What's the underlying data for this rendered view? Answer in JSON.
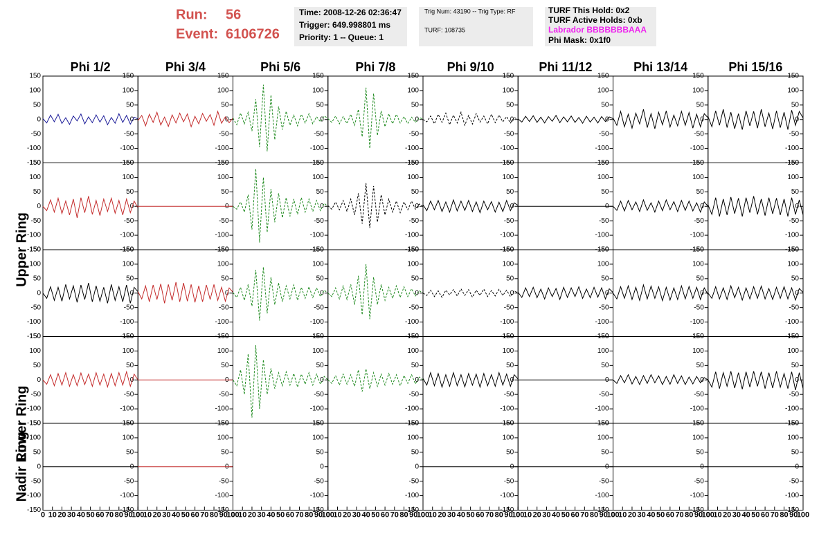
{
  "header": {
    "run_label": "Run:",
    "run": "56",
    "event_label": "Event:",
    "event": "6106726",
    "info_box_1": [
      "Time: 2008-12-26 02:36:47",
      "Trigger: 649.998801 ms",
      "Priority: 1 -- Queue: 1"
    ],
    "info_box_2": [
      "Trig Num: 43190 -- Trig Type: RF",
      "TURF: 108735"
    ],
    "info_box_3": [
      "TURF This Hold: 0x2",
      "TURF Active Holds: 0xb",
      "Labrador BBBBBBBAAA",
      "Phi Mask: 0x1f0"
    ]
  },
  "chart_data": {
    "type": "line",
    "columns": [
      "Phi 1/2",
      "Phi 3/4",
      "Phi 5/6",
      "Phi 7/8",
      "Phi 9/10",
      "Phi 11/12",
      "Phi 13/14",
      "Phi 15/16"
    ],
    "row_labels": [
      "Upper Ring",
      "Lower Ring",
      "Nadir Ring"
    ],
    "xlim": [
      0,
      100
    ],
    "xticks": [
      0,
      10,
      20,
      30,
      40,
      50,
      60,
      70,
      80,
      90,
      100
    ],
    "ylim": [
      -150,
      150
    ],
    "yticks": [
      -150,
      -100,
      -50,
      0,
      50,
      100,
      150
    ],
    "x": [
      0,
      4,
      8,
      12,
      16,
      20,
      24,
      28,
      32,
      36,
      40,
      44,
      48,
      52,
      56,
      60,
      64,
      68,
      72,
      76,
      80,
      84,
      88,
      92,
      96,
      100
    ],
    "panels": [
      {
        "color": "#1c1c99",
        "dashed": false,
        "values": [
          3,
          -12,
          15,
          -8,
          18,
          -14,
          6,
          -17,
          12,
          -5,
          19,
          -15,
          9,
          -11,
          16,
          -9,
          13,
          -18,
          7,
          -13,
          20,
          -10,
          14,
          -16,
          8,
          2
        ]
      },
      {
        "color": "#c42b2b",
        "dashed": false,
        "values": [
          -4,
          14,
          -22,
          18,
          -10,
          25,
          -19,
          8,
          -24,
          16,
          -12,
          22,
          -8,
          19,
          -25,
          11,
          -15,
          21,
          -6,
          17,
          -20,
          28,
          -13,
          9,
          -11,
          5
        ]
      },
      {
        "color": "#1f8a1f",
        "dashed": true,
        "values": [
          5,
          -18,
          22,
          -15,
          25,
          -40,
          70,
          -95,
          120,
          -110,
          85,
          -70,
          45,
          -35,
          28,
          -20,
          15,
          -22,
          18,
          -12,
          20,
          -15,
          10,
          -8,
          12,
          4
        ]
      },
      {
        "color": "#1f8a1f",
        "dashed": true,
        "values": [
          3,
          -10,
          12,
          -15,
          10,
          -14,
          18,
          -20,
          35,
          -60,
          110,
          -100,
          90,
          -55,
          30,
          -25,
          20,
          -15,
          18,
          -12,
          10,
          -14,
          8,
          -10,
          6,
          2
        ]
      },
      {
        "color": "#000000",
        "dashed": true,
        "values": [
          0,
          -8,
          12,
          -15,
          18,
          -10,
          22,
          -18,
          15,
          -12,
          25,
          -20,
          14,
          -16,
          20,
          -9,
          12,
          -15,
          18,
          -11,
          15,
          -8,
          10,
          -12,
          7,
          0
        ]
      },
      {
        "color": "#000000",
        "dashed": false,
        "values": [
          2,
          -9,
          11,
          -7,
          13,
          -10,
          8,
          -12,
          10,
          -6,
          14,
          -11,
          9,
          -8,
          12,
          -10,
          7,
          -13,
          11,
          -9,
          8,
          -12,
          10,
          -7,
          9,
          3
        ]
      },
      {
        "color": "#000000",
        "dashed": false,
        "values": [
          5,
          -20,
          28,
          -25,
          18,
          -30,
          22,
          -15,
          35,
          -28,
          20,
          -32,
          25,
          -18,
          30,
          -26,
          15,
          -22,
          28,
          -20,
          24,
          -30,
          18,
          -25,
          20,
          6
        ]
      },
      {
        "color": "#000000",
        "dashed": false,
        "values": [
          10,
          -25,
          30,
          -20,
          35,
          -28,
          25,
          -32,
          20,
          -35,
          30,
          -22,
          28,
          -30,
          35,
          -25,
          22,
          -33,
          30,
          -28,
          25,
          -35,
          32,
          -20,
          28,
          5
        ]
      },
      {
        "color": "#c42b2b",
        "dashed": false,
        "values": [
          0,
          -15,
          22,
          -20,
          28,
          -25,
          18,
          -30,
          25,
          -40,
          30,
          -22,
          35,
          -28,
          20,
          -32,
          25,
          -18,
          28,
          -24,
          20,
          -30,
          25,
          -22,
          18,
          -5
        ]
      },
      {
        "color": "#c42b2b",
        "dashed": false,
        "values": [
          0,
          0,
          0,
          0,
          0,
          0,
          0,
          0,
          0,
          0,
          0,
          0,
          0,
          0,
          0,
          0,
          0,
          0,
          0,
          0,
          0,
          0,
          0,
          0,
          0,
          0
        ]
      },
      {
        "color": "#1f8a1f",
        "dashed": true,
        "values": [
          0,
          -10,
          15,
          -20,
          40,
          -80,
          130,
          -125,
          100,
          -90,
          60,
          -55,
          45,
          -40,
          30,
          -35,
          25,
          -28,
          30,
          -20,
          25,
          -18,
          20,
          -15,
          10,
          0
        ]
      },
      {
        "color": "#000000",
        "dashed": true,
        "values": [
          2,
          -10,
          15,
          -12,
          20,
          -18,
          25,
          -30,
          45,
          -60,
          80,
          -75,
          70,
          -55,
          40,
          -30,
          25,
          -20,
          18,
          -22,
          15,
          -12,
          18,
          -10,
          8,
          0
        ]
      },
      {
        "color": "#000000",
        "dashed": false,
        "values": [
          5,
          -15,
          18,
          -12,
          20,
          -18,
          15,
          -20,
          22,
          -16,
          18,
          -14,
          20,
          -18,
          15,
          -22,
          18,
          -12,
          16,
          -20,
          14,
          -18,
          20,
          -15,
          12,
          3
        ]
      },
      {
        "color": "#000000",
        "dashed": false,
        "values": [
          0,
          0,
          0,
          0,
          0,
          0,
          0,
          0,
          0,
          0,
          0,
          0,
          0,
          0,
          0,
          0,
          0,
          0,
          0,
          0,
          0,
          0,
          0,
          0,
          0,
          0
        ]
      },
      {
        "color": "#000000",
        "dashed": false,
        "values": [
          0,
          -14,
          18,
          -16,
          20,
          -12,
          15,
          -18,
          22,
          -14,
          12,
          -20,
          18,
          -15,
          22,
          -12,
          16,
          -18,
          20,
          -14,
          18,
          -16,
          12,
          -20,
          15,
          0
        ]
      },
      {
        "color": "#000000",
        "dashed": false,
        "values": [
          5,
          -28,
          30,
          -35,
          25,
          -30,
          32,
          -25,
          28,
          -35,
          30,
          -22,
          35,
          -28,
          25,
          -32,
          30,
          -26,
          28,
          -30,
          25,
          -35,
          30,
          -28,
          22,
          -30
        ]
      },
      {
        "color": "#000000",
        "dashed": false,
        "values": [
          0,
          -18,
          22,
          -25,
          20,
          -28,
          30,
          -20,
          25,
          -32,
          28,
          -22,
          35,
          -30,
          25,
          -28,
          20,
          -35,
          30,
          -25,
          22,
          -30,
          28,
          -35,
          20,
          5
        ]
      },
      {
        "color": "#c42b2b",
        "dashed": false,
        "values": [
          5,
          -20,
          25,
          -30,
          28,
          -22,
          32,
          -35,
          30,
          -25,
          38,
          -30,
          35,
          -28,
          30,
          -32,
          25,
          -30,
          28,
          -22,
          30,
          -25,
          20,
          -28,
          18,
          3
        ]
      },
      {
        "color": "#1f8a1f",
        "dashed": true,
        "values": [
          2,
          -15,
          20,
          -25,
          30,
          -45,
          80,
          -95,
          90,
          -70,
          55,
          -40,
          35,
          -30,
          25,
          -20,
          28,
          -25,
          20,
          -18,
          22,
          -15,
          18,
          -12,
          10,
          0
        ]
      },
      {
        "color": "#1f8a1f",
        "dashed": true,
        "values": [
          0,
          -12,
          18,
          -20,
          25,
          -22,
          30,
          -40,
          60,
          -75,
          100,
          -90,
          55,
          -40,
          30,
          -25,
          20,
          -18,
          25,
          -15,
          22,
          -12,
          15,
          -10,
          8,
          0
        ]
      },
      {
        "color": "#000000",
        "dashed": true,
        "values": [
          0,
          -8,
          10,
          -12,
          8,
          -15,
          10,
          -6,
          12,
          -10,
          15,
          -8,
          12,
          -14,
          10,
          -8,
          14,
          -12,
          9,
          -10,
          13,
          -8,
          10,
          -12,
          8,
          0
        ]
      },
      {
        "color": "#000000",
        "dashed": false,
        "values": [
          3,
          -15,
          18,
          -12,
          20,
          -16,
          14,
          -20,
          18,
          -12,
          16,
          -22,
          20,
          -15,
          18,
          -12,
          22,
          -18,
          14,
          -16,
          20,
          -14,
          18,
          -20,
          15,
          2
        ]
      },
      {
        "color": "#000000",
        "dashed": false,
        "values": [
          0,
          -20,
          22,
          -18,
          25,
          -22,
          20,
          -25,
          28,
          -20,
          24,
          -18,
          22,
          -26,
          20,
          -24,
          18,
          -22,
          25,
          -20,
          23,
          -18,
          20,
          -22,
          18,
          -5
        ]
      },
      {
        "color": "#000000",
        "dashed": false,
        "values": [
          0,
          -18,
          22,
          -20,
          18,
          -22,
          25,
          -16,
          20,
          -24,
          18,
          -20,
          22,
          -18,
          24,
          -20,
          16,
          -22,
          20,
          -18,
          22,
          -20,
          18,
          -24,
          16,
          2
        ]
      },
      {
        "color": "#c42b2b",
        "dashed": false,
        "values": [
          0,
          -15,
          18,
          -20,
          22,
          -18,
          25,
          -22,
          18,
          -20,
          24,
          -16,
          20,
          -22,
          25,
          -18,
          20,
          -24,
          22,
          -20,
          25,
          -18,
          28,
          -22,
          20,
          0
        ]
      },
      {
        "color": "#c42b2b",
        "dashed": false,
        "values": [
          0,
          0,
          0,
          0,
          0,
          0,
          0,
          0,
          0,
          0,
          0,
          0,
          0,
          0,
          0,
          0,
          0,
          0,
          0,
          0,
          0,
          0,
          0,
          0,
          0,
          0
        ]
      },
      {
        "color": "#1f8a1f",
        "dashed": true,
        "values": [
          0,
          -20,
          35,
          -50,
          90,
          -130,
          120,
          -100,
          70,
          -50,
          40,
          -30,
          25,
          -20,
          28,
          -18,
          22,
          -25,
          20,
          -15,
          25,
          -18,
          20,
          -15,
          12,
          0
        ]
      },
      {
        "color": "#1f8a1f",
        "dashed": true,
        "values": [
          0,
          -12,
          15,
          -18,
          20,
          -15,
          18,
          -22,
          35,
          -40,
          38,
          -30,
          25,
          -22,
          20,
          -18,
          22,
          -15,
          18,
          -20,
          15,
          -12,
          18,
          -14,
          10,
          0
        ]
      },
      {
        "color": "#000000",
        "dashed": false,
        "values": [
          5,
          -18,
          25,
          -20,
          22,
          -25,
          18,
          -22,
          25,
          -20,
          18,
          -24,
          22,
          -18,
          20,
          -25,
          22,
          -20,
          18,
          -22,
          25,
          -18,
          20,
          -22,
          18,
          3
        ]
      },
      {
        "color": "#000000",
        "dashed": false,
        "values": [
          0,
          0,
          0,
          0,
          0,
          0,
          0,
          0,
          0,
          0,
          0,
          0,
          0,
          0,
          0,
          0,
          0,
          0,
          0,
          0,
          0,
          0,
          0,
          0,
          0,
          0
        ]
      },
      {
        "color": "#000000",
        "dashed": false,
        "values": [
          0,
          -12,
          15,
          -10,
          18,
          -14,
          12,
          -16,
          15,
          -12,
          18,
          -10,
          14,
          -16,
          12,
          -15,
          18,
          -12,
          14,
          -16,
          10,
          -14,
          12,
          -10,
          8,
          0
        ]
      },
      {
        "color": "#000000",
        "dashed": false,
        "values": [
          0,
          -25,
          28,
          -30,
          25,
          -22,
          30,
          -28,
          25,
          -32,
          28,
          -25,
          30,
          -22,
          28,
          -30,
          25,
          -28,
          30,
          -25,
          22,
          -30,
          28,
          -35,
          25,
          -30
        ]
      },
      {
        "color": "#000000",
        "dashed": false,
        "values": [
          0,
          0,
          0,
          0,
          0,
          0,
          0,
          0,
          0,
          0,
          0,
          0,
          0,
          0,
          0,
          0,
          0,
          0,
          0,
          0,
          0,
          0,
          0,
          0,
          0,
          0
        ]
      },
      {
        "color": "#c42b2b",
        "dashed": false,
        "values": [
          0,
          0,
          0,
          0,
          0,
          0,
          0,
          0,
          0,
          0,
          0,
          0,
          0,
          0,
          0,
          0,
          0,
          0,
          0,
          0,
          0,
          0,
          0,
          0,
          0,
          0
        ]
      },
      null,
      null,
      {
        "color": "#000000",
        "dashed": false,
        "values": [
          0,
          0,
          0,
          0,
          0,
          0,
          0,
          0,
          0,
          0,
          0,
          0,
          0,
          0,
          0,
          0,
          0,
          0,
          0,
          0,
          0,
          0,
          0,
          0,
          0,
          0
        ]
      },
      {
        "color": "#000000",
        "dashed": false,
        "values": [
          0,
          0,
          0,
          0,
          0,
          0,
          0,
          0,
          0,
          0,
          0,
          0,
          0,
          0,
          0,
          0,
          0,
          0,
          0,
          0,
          0,
          0,
          0,
          0,
          0,
          0
        ]
      },
      {
        "color": "#000000",
        "dashed": false,
        "values": [
          0,
          0,
          0,
          0,
          0,
          0,
          0,
          0,
          0,
          0,
          0,
          0,
          0,
          0,
          0,
          0,
          0,
          0,
          0,
          0,
          0,
          0,
          0,
          0,
          0,
          0
        ]
      },
      {
        "color": "#000000",
        "dashed": false,
        "values": [
          0,
          0,
          0,
          0,
          0,
          0,
          0,
          0,
          0,
          0,
          0,
          0,
          0,
          0,
          0,
          0,
          0,
          0,
          0,
          0,
          0,
          0,
          0,
          0,
          0,
          0
        ]
      }
    ]
  }
}
